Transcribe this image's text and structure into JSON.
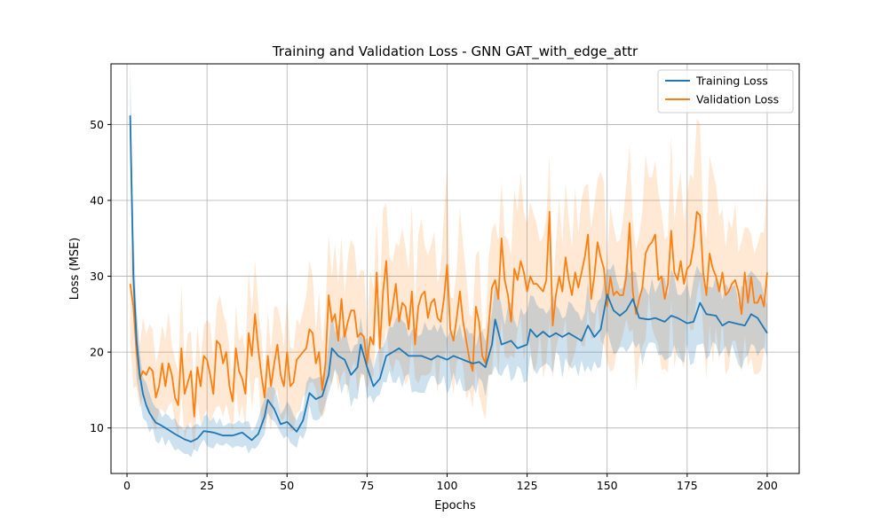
{
  "chart_data": {
    "type": "line",
    "title": "Training and Validation Loss - GNN GAT_with_edge_attr",
    "xlabel": "Epochs",
    "ylabel": "Loss (MSE)",
    "xlim": [
      -5,
      210
    ],
    "ylim": [
      4,
      58
    ],
    "xticks": [
      0,
      25,
      50,
      75,
      100,
      125,
      150,
      175,
      200
    ],
    "yticks": [
      10,
      20,
      30,
      40,
      50
    ],
    "grid": true,
    "legend_position": "top-right",
    "colors": {
      "train": "#1f77b4",
      "val": "#ff7f0e"
    },
    "series": [
      {
        "name": "Training Loss",
        "color": "#1f77b4",
        "band_spread": 0.18,
        "keypoints": [
          [
            1,
            51.2
          ],
          [
            2,
            30
          ],
          [
            3,
            21.5
          ],
          [
            4,
            17
          ],
          [
            5,
            14.5
          ],
          [
            6,
            13
          ],
          [
            7,
            12
          ],
          [
            8,
            11.3
          ],
          [
            9,
            10.7
          ],
          [
            10,
            10.5
          ],
          [
            12,
            10
          ],
          [
            15,
            9.2
          ],
          [
            18,
            8.5
          ],
          [
            20,
            8.2
          ],
          [
            22,
            8.6
          ],
          [
            24,
            9.6
          ],
          [
            27,
            9.4
          ],
          [
            30,
            9
          ],
          [
            33,
            9
          ],
          [
            36,
            9.4
          ],
          [
            39,
            8.4
          ],
          [
            41,
            9.2
          ],
          [
            43,
            11.5
          ],
          [
            44,
            13.7
          ],
          [
            46,
            12.5
          ],
          [
            48,
            10.5
          ],
          [
            50,
            10.8
          ],
          [
            53,
            9.5
          ],
          [
            55,
            11
          ],
          [
            57,
            14.6
          ],
          [
            59,
            13.8
          ],
          [
            61,
            14.2
          ],
          [
            63,
            17
          ],
          [
            64,
            20.5
          ],
          [
            66,
            19.5
          ],
          [
            68,
            19
          ],
          [
            70,
            17
          ],
          [
            72,
            18
          ],
          [
            73,
            21
          ],
          [
            75,
            18
          ],
          [
            77,
            15.5
          ],
          [
            79,
            16.5
          ],
          [
            81,
            19.5
          ],
          [
            83,
            20
          ],
          [
            85,
            20.5
          ],
          [
            88,
            19.5
          ],
          [
            92,
            19.5
          ],
          [
            95,
            19
          ],
          [
            97,
            19.5
          ],
          [
            100,
            19
          ],
          [
            102,
            19.5
          ],
          [
            105,
            19
          ],
          [
            108,
            18.5
          ],
          [
            110,
            18.7
          ],
          [
            112,
            18
          ],
          [
            114,
            21
          ],
          [
            115,
            24.3
          ],
          [
            117,
            21
          ],
          [
            120,
            21.5
          ],
          [
            122,
            20.5
          ],
          [
            125,
            21
          ],
          [
            126,
            23
          ],
          [
            128,
            22
          ],
          [
            130,
            22.7
          ],
          [
            132,
            22
          ],
          [
            134,
            22.5
          ],
          [
            136,
            22
          ],
          [
            138,
            22.5
          ],
          [
            140,
            22
          ],
          [
            142,
            21.5
          ],
          [
            144,
            23.5
          ],
          [
            146,
            22
          ],
          [
            148,
            23
          ],
          [
            150,
            27.6
          ],
          [
            152,
            25.5
          ],
          [
            154,
            24.8
          ],
          [
            156,
            25.5
          ],
          [
            158,
            27
          ],
          [
            160,
            24.5
          ],
          [
            163,
            24.3
          ],
          [
            165,
            24.5
          ],
          [
            168,
            24
          ],
          [
            170,
            24.8
          ],
          [
            172,
            24.5
          ],
          [
            175,
            23.8
          ],
          [
            177,
            24
          ],
          [
            179,
            26.5
          ],
          [
            181,
            25
          ],
          [
            184,
            24.8
          ],
          [
            186,
            23.5
          ],
          [
            188,
            24
          ],
          [
            190,
            23.8
          ],
          [
            193,
            23.5
          ],
          [
            195,
            25
          ],
          [
            197,
            24.5
          ],
          [
            200,
            22.5
          ]
        ]
      },
      {
        "name": "Validation Loss",
        "color": "#ff7f0e",
        "band_spread": 0.3,
        "keypoints": [
          [
            1,
            29
          ],
          [
            2,
            26
          ],
          [
            3,
            20
          ],
          [
            4,
            16.5
          ],
          [
            5,
            17.5
          ],
          [
            6,
            17
          ],
          [
            7,
            18
          ],
          [
            8,
            17.5
          ],
          [
            9,
            14
          ],
          [
            10,
            15.5
          ],
          [
            11,
            18.5
          ],
          [
            12,
            15.5
          ],
          [
            13,
            18.5
          ],
          [
            14,
            17
          ],
          [
            15,
            14
          ],
          [
            16,
            13
          ],
          [
            17,
            20.5
          ],
          [
            18,
            14.5
          ],
          [
            19,
            16
          ],
          [
            20,
            17.5
          ],
          [
            21,
            11.5
          ],
          [
            22,
            18
          ],
          [
            23,
            15.5
          ],
          [
            24,
            19.5
          ],
          [
            25,
            19
          ],
          [
            26,
            17
          ],
          [
            27,
            14.5
          ],
          [
            28,
            21.5
          ],
          [
            29,
            21
          ],
          [
            30,
            18.5
          ],
          [
            31,
            20
          ],
          [
            32,
            15.5
          ],
          [
            33,
            13.5
          ],
          [
            34,
            20.5
          ],
          [
            35,
            17.5
          ],
          [
            36,
            16.5
          ],
          [
            37,
            14.5
          ],
          [
            38,
            22.5
          ],
          [
            39,
            19.5
          ],
          [
            40,
            25
          ],
          [
            41,
            20.5
          ],
          [
            42,
            17
          ],
          [
            43,
            14
          ],
          [
            44,
            19.5
          ],
          [
            45,
            15.5
          ],
          [
            46,
            18.5
          ],
          [
            47,
            21
          ],
          [
            48,
            17
          ],
          [
            49,
            15.5
          ],
          [
            50,
            20
          ],
          [
            51,
            15.5
          ],
          [
            52,
            16
          ],
          [
            53,
            19
          ],
          [
            54,
            19.5
          ],
          [
            55,
            20
          ],
          [
            56,
            20.5
          ],
          [
            57,
            23
          ],
          [
            58,
            22.5
          ],
          [
            59,
            18.5
          ],
          [
            60,
            20
          ],
          [
            61,
            15
          ],
          [
            62,
            18.5
          ],
          [
            63,
            27.5
          ],
          [
            64,
            24
          ],
          [
            65,
            25
          ],
          [
            66,
            21.5
          ],
          [
            67,
            27
          ],
          [
            68,
            22
          ],
          [
            69,
            24
          ],
          [
            70,
            25.5
          ],
          [
            71,
            25.5
          ],
          [
            72,
            22
          ],
          [
            73,
            22.5
          ],
          [
            74,
            22
          ],
          [
            75,
            18.5
          ],
          [
            76,
            22
          ],
          [
            77,
            21
          ],
          [
            78,
            30.5
          ],
          [
            79,
            20.5
          ],
          [
            80,
            28
          ],
          [
            81,
            32
          ],
          [
            82,
            23.5
          ],
          [
            83,
            26
          ],
          [
            84,
            29
          ],
          [
            85,
            24
          ],
          [
            86,
            26.5
          ],
          [
            87,
            26
          ],
          [
            88,
            23
          ],
          [
            89,
            28
          ],
          [
            90,
            21
          ],
          [
            91,
            26
          ],
          [
            92,
            27.5
          ],
          [
            93,
            28
          ],
          [
            94,
            24.5
          ],
          [
            95,
            26.5
          ],
          [
            96,
            27
          ],
          [
            97,
            24.5
          ],
          [
            98,
            24
          ],
          [
            99,
            27
          ],
          [
            100,
            31.5
          ],
          [
            101,
            23
          ],
          [
            102,
            21.5
          ],
          [
            103,
            24.5
          ],
          [
            104,
            28
          ],
          [
            105,
            24
          ],
          [
            106,
            21.5
          ],
          [
            107,
            19
          ],
          [
            108,
            17.5
          ],
          [
            109,
            26
          ],
          [
            110,
            24
          ],
          [
            111,
            19.5
          ],
          [
            112,
            18.5
          ],
          [
            113,
            23.5
          ],
          [
            114,
            28.5
          ],
          [
            115,
            29.5
          ],
          [
            116,
            27
          ],
          [
            117,
            35
          ],
          [
            118,
            29.5
          ],
          [
            119,
            27.5
          ],
          [
            120,
            24
          ],
          [
            121,
            31
          ],
          [
            122,
            29.5
          ],
          [
            123,
            32
          ],
          [
            124,
            30.5
          ],
          [
            125,
            28
          ],
          [
            126,
            30
          ],
          [
            127,
            29
          ],
          [
            128,
            29
          ],
          [
            129,
            28.5
          ],
          [
            130,
            28
          ],
          [
            131,
            29.5
          ],
          [
            132,
            38.5
          ],
          [
            133,
            23.5
          ],
          [
            134,
            27.5
          ],
          [
            135,
            30
          ],
          [
            136,
            28
          ],
          [
            137,
            32.5
          ],
          [
            138,
            29.5
          ],
          [
            139,
            27.5
          ],
          [
            140,
            30.5
          ],
          [
            141,
            28.5
          ],
          [
            142,
            30.5
          ],
          [
            143,
            32.5
          ],
          [
            144,
            35.5
          ],
          [
            145,
            27
          ],
          [
            146,
            30
          ],
          [
            147,
            34.5
          ],
          [
            148,
            32.5
          ],
          [
            149,
            31
          ],
          [
            150,
            26
          ],
          [
            151,
            30
          ],
          [
            152,
            27.5
          ],
          [
            153,
            28
          ],
          [
            154,
            27.5
          ],
          [
            155,
            27.5
          ],
          [
            156,
            30
          ],
          [
            157,
            37
          ],
          [
            158,
            28
          ],
          [
            159,
            25
          ],
          [
            160,
            27
          ],
          [
            161,
            28.5
          ],
          [
            162,
            33
          ],
          [
            163,
            34
          ],
          [
            164,
            34.5
          ],
          [
            165,
            35.5
          ],
          [
            166,
            29.5
          ],
          [
            167,
            30
          ],
          [
            168,
            27
          ],
          [
            169,
            29
          ],
          [
            170,
            36
          ],
          [
            171,
            30.5
          ],
          [
            172,
            29.5
          ],
          [
            173,
            32
          ],
          [
            174,
            29
          ],
          [
            175,
            31
          ],
          [
            176,
            31.5
          ],
          [
            177,
            34
          ],
          [
            178,
            38.5
          ],
          [
            179,
            38
          ],
          [
            180,
            30.5
          ],
          [
            181,
            27.5
          ],
          [
            182,
            33
          ],
          [
            183,
            31
          ],
          [
            184,
            30
          ],
          [
            185,
            28
          ],
          [
            186,
            30.5
          ],
          [
            187,
            27.5
          ],
          [
            188,
            28
          ],
          [
            189,
            29
          ],
          [
            190,
            29.5
          ],
          [
            191,
            28
          ],
          [
            192,
            25
          ],
          [
            193,
            30.5
          ],
          [
            194,
            26.5
          ],
          [
            195,
            30
          ],
          [
            196,
            26.5
          ],
          [
            197,
            26.5
          ],
          [
            198,
            27.5
          ],
          [
            199,
            26
          ],
          [
            200,
            30.5
          ]
        ]
      }
    ]
  }
}
